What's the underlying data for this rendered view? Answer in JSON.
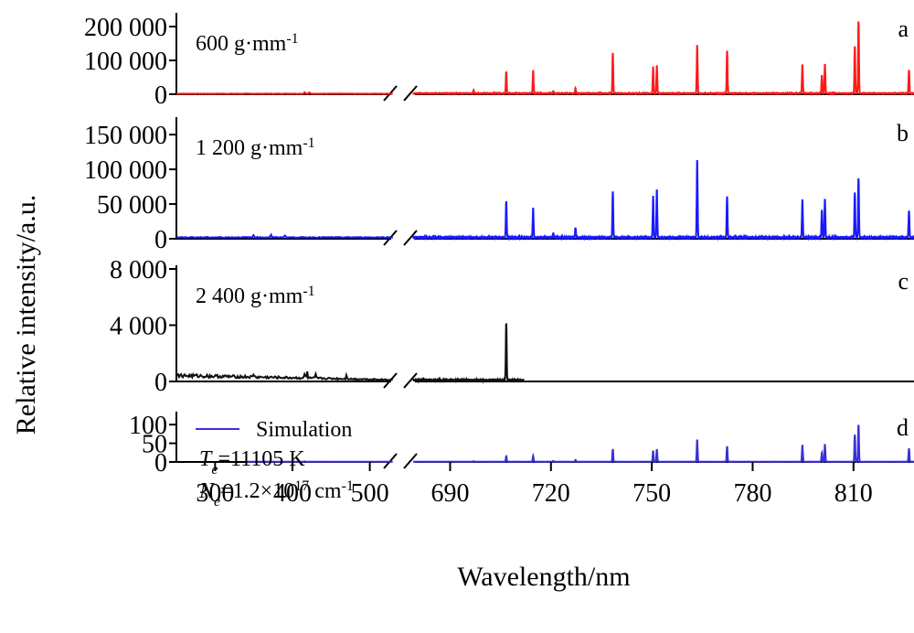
{
  "chart_data": {
    "type": "line",
    "ylabel": "Relative intensity/a.u.",
    "xlabel": "Wavelength/nm",
    "x_axis": {
      "break": true,
      "segments": [
        {
          "range": [
            250,
            530
          ],
          "ticks": [
            300,
            400,
            500
          ],
          "tick_labels": [
            "300",
            "400",
            "500"
          ]
        },
        {
          "range": [
            679,
            828
          ],
          "ticks": [
            690,
            720,
            750,
            780,
            810
          ],
          "tick_labels": [
            "690",
            "720",
            "750",
            "780",
            "810"
          ]
        }
      ]
    },
    "colors": {
      "a": "#ff1a1a",
      "b": "#1a1aff",
      "c": "#111111",
      "d": "#3a2fd8"
    },
    "panels": [
      {
        "id": "a",
        "letter": "a",
        "annotation": "600 g·mm",
        "annotation_sup": "-1",
        "ylim": [
          0,
          230000
        ],
        "yticks": [
          0,
          100000,
          200000
        ],
        "ytick_labels": [
          "0",
          "100 000",
          "200 000"
        ],
        "baseline_left": 1500,
        "baseline_right": 2500,
        "x_start": 250,
        "x_end": 828,
        "peaks": [
          [
            416,
            6000
          ],
          [
            422,
            4000
          ],
          [
            697,
            10000
          ],
          [
            706.7,
            65000
          ],
          [
            714.7,
            68000
          ],
          [
            720.7,
            6000
          ],
          [
            727.3,
            15000
          ],
          [
            738.4,
            120000
          ],
          [
            750.4,
            80000
          ],
          [
            751.5,
            84000
          ],
          [
            763.5,
            145000
          ],
          [
            772.4,
            128000
          ],
          [
            794.8,
            85000
          ],
          [
            800.6,
            55000
          ],
          [
            801.5,
            88000
          ],
          [
            810.4,
            140000
          ],
          [
            811.5,
            215000
          ],
          [
            826.5,
            70000
          ]
        ]
      },
      {
        "id": "b",
        "letter": "b",
        "annotation": "1 200 g·mm",
        "annotation_sup": "-1",
        "ylim": [
          0,
          170000
        ],
        "yticks": [
          0,
          50000,
          100000,
          150000
        ],
        "ytick_labels": [
          "0",
          "50 000",
          "100 000",
          "150 000"
        ],
        "baseline_left": 2000,
        "baseline_right": 2000,
        "x_start": 250,
        "x_end": 828,
        "peaks": [
          [
            350,
            4000
          ],
          [
            372,
            5000
          ],
          [
            390,
            4000
          ],
          [
            706.7,
            52000
          ],
          [
            714.7,
            43000
          ],
          [
            720.7,
            6000
          ],
          [
            727.3,
            14000
          ],
          [
            738.4,
            66000
          ],
          [
            750.4,
            60000
          ],
          [
            751.5,
            70000
          ],
          [
            763.5,
            113000
          ],
          [
            772.4,
            60000
          ],
          [
            794.8,
            55000
          ],
          [
            800.6,
            40000
          ],
          [
            801.5,
            56000
          ],
          [
            810.4,
            65000
          ],
          [
            811.5,
            86000
          ],
          [
            826.5,
            39000
          ]
        ]
      },
      {
        "id": "c",
        "letter": "c",
        "annotation": "2 400 g·mm",
        "annotation_sup": "-1",
        "ylim": [
          0,
          8000
        ],
        "yticks": [
          0,
          4000,
          8000
        ],
        "ytick_labels": [
          "0",
          "4 000",
          "8 000"
        ],
        "baseline_left": 420,
        "baseline_left_end": 120,
        "baseline_right": 100,
        "x_start": 250,
        "x_end": 712,
        "peaks": [
          [
            350,
            260
          ],
          [
            416,
            340
          ],
          [
            419,
            480
          ],
          [
            430,
            250
          ],
          [
            470,
            300
          ],
          [
            706.7,
            4100
          ]
        ]
      },
      {
        "id": "d",
        "letter": "d",
        "legend": "Simulation",
        "annotation_lines": [
          {
            "sym": "T",
            "sub": "e",
            "text": "=11105 K"
          },
          {
            "sym": "N",
            "sub": "e",
            "text": "=1.2×10",
            "sup": "17",
            "tail": " cm",
            "sup2": "-1"
          }
        ],
        "ylim": [
          0,
          125
        ],
        "yticks": [
          0,
          50,
          100
        ],
        "ytick_labels": [
          "0",
          "50",
          "100"
        ],
        "baseline_left": 0.5,
        "baseline_right": 0.5,
        "x_start": 340,
        "x_end": 828,
        "peaks": [
          [
            416,
            1.5
          ],
          [
            697,
            1.5
          ],
          [
            706.7,
            15
          ],
          [
            714.7,
            16
          ],
          [
            720.7,
            2
          ],
          [
            727.3,
            5
          ],
          [
            738.4,
            34
          ],
          [
            750.4,
            30
          ],
          [
            751.5,
            34
          ],
          [
            763.5,
            60
          ],
          [
            772.4,
            42
          ],
          [
            794.8,
            45
          ],
          [
            800.6,
            25
          ],
          [
            801.5,
            48
          ],
          [
            810.4,
            73
          ],
          [
            811.5,
            100
          ],
          [
            826.5,
            36
          ]
        ]
      }
    ]
  }
}
